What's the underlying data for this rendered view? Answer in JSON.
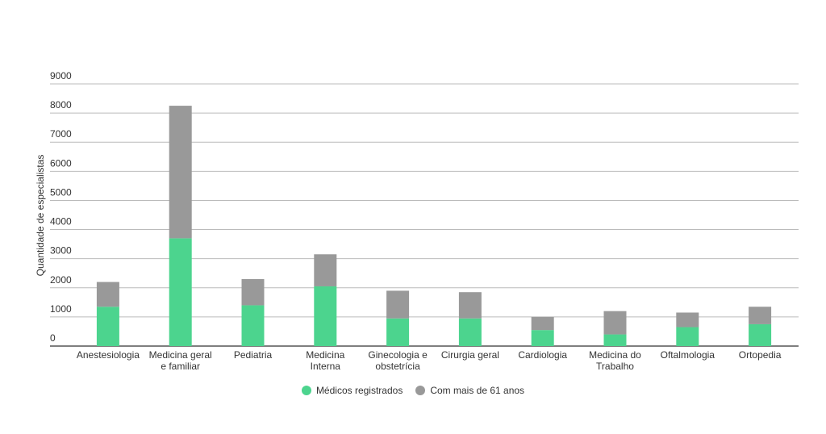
{
  "chart_data": {
    "type": "stacked_bar",
    "y_label": "Quantidade de especialistas",
    "categories": [
      "Anestesiologia",
      "Medicina geral e familiar",
      "Pediatria",
      "Medicina Interna",
      "Ginecologia e obstetrícia",
      "Cirurgia geral",
      "Cardiologia",
      "Medicina do Trabalho",
      "Oftalmologia",
      "Ortopedia"
    ],
    "series": [
      {
        "name": "Médicos registrados",
        "color": "#4cd48e",
        "values": [
          1350,
          3700,
          1400,
          2050,
          950,
          950,
          550,
          400,
          650,
          750
        ]
      },
      {
        "name": "Com mais de 61 anos",
        "color": "#999999",
        "values": [
          850,
          4550,
          900,
          1100,
          950,
          900,
          450,
          800,
          500,
          600
        ]
      }
    ],
    "ylim": [
      0,
      9000
    ],
    "yticks": [
      0,
      1000,
      2000,
      3000,
      4000,
      5000,
      6000,
      7000,
      8000,
      9000
    ],
    "grid": true,
    "legend": "bottom"
  }
}
